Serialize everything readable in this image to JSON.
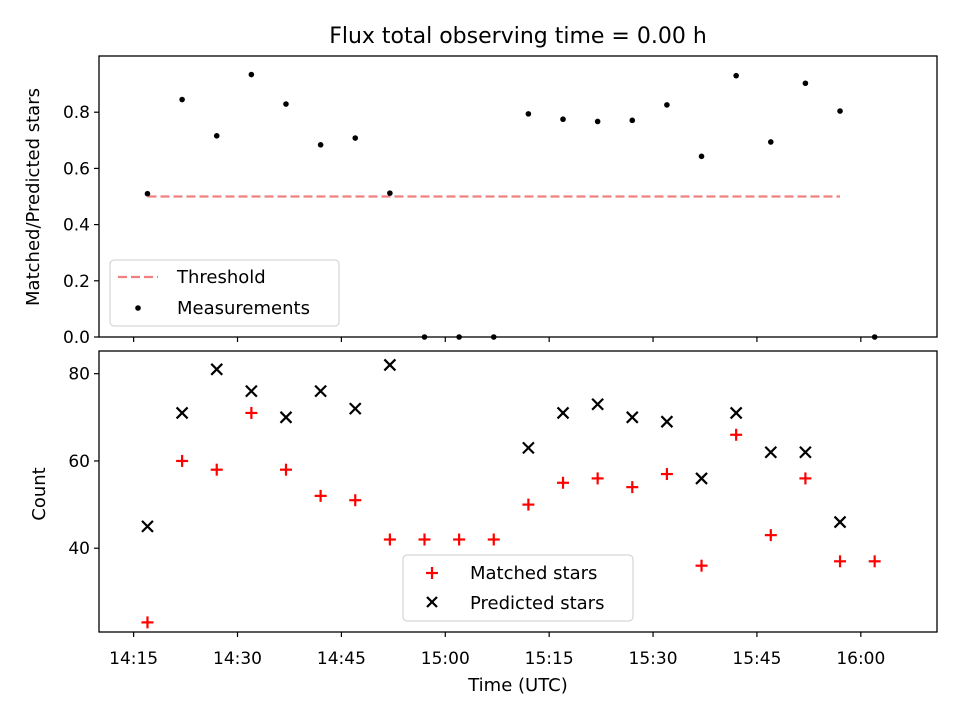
{
  "chart_data": [
    {
      "type": "scatter",
      "title": "Flux total observing time = 0.00 h",
      "xlabel": "",
      "ylabel": "Matched/Predicted stars",
      "ylim": [
        0,
        1.0
      ],
      "yticks": [
        0.0,
        0.2,
        0.4,
        0.6,
        0.8
      ],
      "ytick_labels": [
        "0.0",
        "0.2",
        "0.4",
        "0.6",
        "0.8"
      ],
      "legend_position": "lower-left",
      "colors": {
        "threshold": "#f08080",
        "measurements": "#000000"
      },
      "threshold": {
        "name": "Threshold",
        "y": 0.5,
        "x_start": "14:17",
        "x_end": "15:57"
      },
      "series": [
        {
          "name": "Measurements",
          "x": [
            "14:17",
            "14:22",
            "14:27",
            "14:32",
            "14:37",
            "14:42",
            "14:47",
            "14:52",
            "14:57",
            "15:02",
            "15:07",
            "15:12",
            "15:17",
            "15:22",
            "15:27",
            "15:32",
            "15:37",
            "15:42",
            "15:47",
            "15:52",
            "15:57",
            "16:02"
          ],
          "y": [
            0.51,
            0.845,
            0.716,
            0.934,
            0.829,
            0.684,
            0.708,
            0.512,
            0.0,
            0.0,
            0.0,
            0.794,
            0.775,
            0.767,
            0.771,
            0.826,
            0.643,
            0.93,
            0.694,
            0.903,
            0.804,
            0.0
          ]
        }
      ]
    },
    {
      "type": "scatter",
      "title": "",
      "xlabel": "Time (UTC)",
      "ylabel": "Count",
      "ylim": [
        20.8,
        85.2
      ],
      "yticks": [
        40,
        60,
        80
      ],
      "ytick_labels": [
        "40",
        "60",
        "80"
      ],
      "xlim": [
        "14:10",
        "16:11"
      ],
      "xticks": [
        "14:15",
        "14:30",
        "14:45",
        "15:00",
        "15:15",
        "15:30",
        "15:45",
        "16:00"
      ],
      "xtick_labels": [
        "14:15",
        "14:30",
        "14:45",
        "15:00",
        "15:15",
        "15:30",
        "15:45",
        "16:00"
      ],
      "legend_position": "lower-center",
      "colors": {
        "matched": "#ff0000",
        "predicted": "#000000"
      },
      "series": [
        {
          "name": "Matched stars",
          "x": [
            "14:17",
            "14:22",
            "14:27",
            "14:32",
            "14:37",
            "14:42",
            "14:47",
            "14:52",
            "14:57",
            "15:02",
            "15:07",
            "15:12",
            "15:17",
            "15:22",
            "15:27",
            "15:32",
            "15:37",
            "15:42",
            "15:47",
            "15:52",
            "15:57",
            "16:02"
          ],
          "y": [
            23,
            60,
            58,
            71,
            58,
            52,
            51,
            42,
            42,
            42,
            42,
            50,
            55,
            56,
            54,
            57,
            36,
            66,
            43,
            56,
            37,
            37
          ]
        },
        {
          "name": "Predicted stars",
          "x": [
            "14:17",
            "14:22",
            "14:27",
            "14:32",
            "14:37",
            "14:42",
            "14:47",
            "14:52",
            "15:12",
            "15:17",
            "15:22",
            "15:27",
            "15:32",
            "15:37",
            "15:42",
            "15:47",
            "15:52",
            "15:57"
          ],
          "y": [
            45,
            71,
            81,
            76,
            70,
            76,
            72,
            82,
            63,
            71,
            73,
            70,
            69,
            56,
            71,
            62,
            62,
            46
          ]
        }
      ]
    }
  ]
}
